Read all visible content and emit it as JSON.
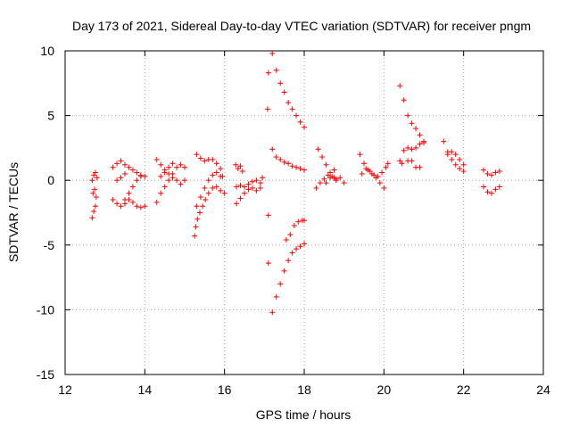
{
  "chart_data": {
    "type": "scatter",
    "title": "Day 173 of 2021, Sidereal Day-to-day VTEC variation (SDTVAR) for receiver pngm",
    "xlabel": "GPS time / hours",
    "ylabel": "SDTVAR / TECUs",
    "xlim": [
      12,
      24
    ],
    "ylim": [
      -15,
      10
    ],
    "xticks": [
      12,
      14,
      16,
      18,
      20,
      22,
      24
    ],
    "yticks": [
      -15,
      -10,
      -5,
      0,
      5,
      10
    ],
    "grid": true,
    "marker": "+",
    "color": "#ff0000",
    "segments": [
      [
        [
          12.68,
          -2.9
        ],
        [
          12.72,
          -2.4
        ],
        [
          12.76,
          -2.0
        ]
      ],
      [
        [
          12.7,
          -1.0
        ],
        [
          12.74,
          -0.7
        ],
        [
          12.78,
          -1.3
        ]
      ],
      [
        [
          12.68,
          0.0
        ],
        [
          12.72,
          0.4
        ],
        [
          12.76,
          0.6
        ],
        [
          12.8,
          0.2
        ]
      ],
      [
        [
          13.2,
          1.0
        ],
        [
          13.3,
          1.3
        ],
        [
          13.4,
          1.5
        ],
        [
          13.5,
          1.2
        ],
        [
          13.6,
          1.0
        ],
        [
          13.7,
          0.8
        ],
        [
          13.8,
          0.6
        ],
        [
          13.9,
          0.4
        ],
        [
          14.0,
          0.3
        ]
      ],
      [
        [
          13.2,
          -1.5
        ],
        [
          13.3,
          -1.8
        ],
        [
          13.4,
          -2.0
        ],
        [
          13.5,
          -1.8
        ],
        [
          13.6,
          -1.5
        ],
        [
          13.7,
          -1.7
        ],
        [
          13.8,
          -2.0
        ],
        [
          13.9,
          -2.1
        ],
        [
          14.0,
          -2.0
        ]
      ],
      [
        [
          13.5,
          -1.5
        ],
        [
          13.6,
          -1.0
        ],
        [
          13.7,
          -0.5
        ],
        [
          13.8,
          0.0
        ],
        [
          13.9,
          0.3
        ]
      ],
      [
        [
          13.3,
          0.0
        ],
        [
          13.4,
          0.2
        ],
        [
          13.5,
          0.5
        ]
      ],
      [
        [
          14.3,
          -1.7
        ],
        [
          14.4,
          -1.0
        ],
        [
          14.5,
          -0.5
        ],
        [
          14.6,
          0.0
        ],
        [
          14.7,
          0.5
        ],
        [
          14.8,
          1.0
        ],
        [
          14.9,
          1.2
        ],
        [
          15.0,
          1.0
        ]
      ],
      [
        [
          14.3,
          1.6
        ],
        [
          14.4,
          1.2
        ],
        [
          14.5,
          0.8
        ],
        [
          14.6,
          0.5
        ],
        [
          14.7,
          0.2
        ],
        [
          14.8,
          0.0
        ],
        [
          14.9,
          -0.3
        ],
        [
          15.0,
          0.0
        ]
      ],
      [
        [
          14.4,
          0.3
        ],
        [
          14.5,
          0.6
        ],
        [
          14.6,
          1.0
        ],
        [
          14.7,
          1.3
        ]
      ],
      [
        [
          15.25,
          -4.3
        ],
        [
          15.28,
          -3.6
        ],
        [
          15.32,
          -3.0
        ],
        [
          15.38,
          -2.5
        ],
        [
          15.45,
          -2.0
        ],
        [
          15.52,
          -1.5
        ],
        [
          15.6,
          -1.0
        ],
        [
          15.7,
          -0.6
        ],
        [
          15.8,
          -0.5
        ],
        [
          15.9,
          -0.8
        ],
        [
          16.0,
          -1.0
        ]
      ],
      [
        [
          15.3,
          -2.0
        ],
        [
          15.4,
          -1.3
        ],
        [
          15.5,
          -0.6
        ],
        [
          15.6,
          0.0
        ],
        [
          15.7,
          0.4
        ],
        [
          15.8,
          0.6
        ],
        [
          15.9,
          0.3
        ]
      ],
      [
        [
          15.3,
          2.0
        ],
        [
          15.4,
          1.7
        ],
        [
          15.5,
          1.5
        ],
        [
          15.6,
          1.6
        ],
        [
          15.7,
          1.6
        ],
        [
          15.8,
          1.3
        ],
        [
          15.9,
          0.9
        ],
        [
          15.95,
          0.3
        ]
      ],
      [
        [
          16.3,
          -1.8
        ],
        [
          16.4,
          -1.4
        ],
        [
          16.5,
          -1.0
        ],
        [
          16.6,
          -0.7
        ],
        [
          16.7,
          -0.6
        ],
        [
          16.8,
          -0.8
        ],
        [
          16.9,
          -0.6
        ]
      ],
      [
        [
          16.3,
          -0.5
        ],
        [
          16.4,
          -0.4
        ],
        [
          16.5,
          -0.5
        ],
        [
          16.6,
          -0.3
        ],
        [
          16.7,
          -0.1
        ],
        [
          16.8,
          0.0
        ],
        [
          16.9,
          -0.2
        ],
        [
          16.95,
          0.2
        ]
      ],
      [
        [
          16.28,
          1.2
        ],
        [
          16.34,
          0.9
        ],
        [
          16.4,
          1.1
        ],
        [
          16.45,
          0.7
        ]
      ],
      [
        [
          17.2,
          9.8
        ],
        [
          17.3,
          8.5
        ],
        [
          17.4,
          7.5
        ],
        [
          17.5,
          6.8
        ],
        [
          17.6,
          6.0
        ],
        [
          17.7,
          5.5
        ],
        [
          17.8,
          5.0
        ],
        [
          17.9,
          4.5
        ],
        [
          18.0,
          4.1
        ]
      ],
      [
        [
          17.1,
          8.3
        ]
      ],
      [
        [
          17.08,
          5.5
        ]
      ],
      [
        [
          17.2,
          2.4
        ],
        [
          17.3,
          1.8
        ],
        [
          17.4,
          1.6
        ],
        [
          17.5,
          1.4
        ],
        [
          17.6,
          1.3
        ],
        [
          17.7,
          1.1
        ],
        [
          17.8,
          1.0
        ],
        [
          17.9,
          0.9
        ],
        [
          18.0,
          0.8
        ]
      ],
      [
        [
          17.1,
          -2.7
        ]
      ],
      [
        [
          17.1,
          -6.4
        ]
      ],
      [
        [
          17.2,
          -10.2
        ],
        [
          17.3,
          -9.0
        ],
        [
          17.4,
          -8.0
        ],
        [
          17.5,
          -7.0
        ],
        [
          17.6,
          -6.2
        ],
        [
          17.7,
          -5.6
        ],
        [
          17.8,
          -5.3
        ],
        [
          17.9,
          -5.1
        ],
        [
          18.0,
          -4.9
        ]
      ],
      [
        [
          17.55,
          -4.6
        ],
        [
          17.65,
          -4.2
        ],
        [
          17.75,
          -3.5
        ],
        [
          17.85,
          -3.2
        ],
        [
          17.95,
          -3.1
        ],
        [
          18.0,
          -3.1
        ]
      ],
      [
        [
          18.3,
          -0.6
        ],
        [
          18.4,
          -0.2
        ],
        [
          18.5,
          0.1
        ],
        [
          18.6,
          0.4
        ],
        [
          18.7,
          0.3
        ],
        [
          18.8,
          0.1
        ],
        [
          18.9,
          0.2
        ],
        [
          19.0,
          -0.2
        ]
      ],
      [
        [
          18.35,
          2.4
        ],
        [
          18.45,
          1.8
        ],
        [
          18.55,
          1.2
        ],
        [
          18.65,
          0.6
        ],
        [
          18.75,
          0.2
        ],
        [
          18.8,
          0.0
        ]
      ],
      [
        [
          18.55,
          -0.2
        ],
        [
          18.65,
          0.2
        ],
        [
          18.75,
          0.8
        ]
      ],
      [
        [
          19.4,
          2.0
        ],
        [
          19.5,
          1.3
        ],
        [
          19.6,
          0.8
        ],
        [
          19.7,
          0.5
        ],
        [
          19.8,
          0.2
        ],
        [
          19.9,
          -0.2
        ],
        [
          20.0,
          -0.6
        ]
      ],
      [
        [
          19.45,
          0.5
        ],
        [
          19.55,
          0.9
        ],
        [
          19.65,
          0.7
        ],
        [
          19.75,
          0.4
        ],
        [
          19.85,
          0.3
        ],
        [
          19.95,
          0.6
        ],
        [
          20.05,
          1.0
        ],
        [
          20.1,
          1.3
        ]
      ],
      [
        [
          20.4,
          7.3
        ],
        [
          20.5,
          6.2
        ],
        [
          20.6,
          5.0
        ],
        [
          20.7,
          4.4
        ],
        [
          20.8,
          4.0
        ],
        [
          20.9,
          3.5
        ],
        [
          21.0,
          3.0
        ]
      ],
      [
        [
          20.4,
          1.5
        ],
        [
          20.5,
          2.3
        ],
        [
          20.6,
          2.5
        ],
        [
          20.7,
          2.4
        ],
        [
          20.8,
          2.5
        ],
        [
          20.9,
          2.8
        ],
        [
          21.0,
          2.9
        ]
      ],
      [
        [
          20.45,
          1.3
        ],
        [
          20.6,
          1.5
        ],
        [
          20.7,
          1.5
        ],
        [
          20.8,
          1.0
        ],
        [
          20.9,
          1.0
        ]
      ],
      [
        [
          21.5,
          3.0
        ],
        [
          21.6,
          2.2
        ],
        [
          21.7,
          1.6
        ],
        [
          21.8,
          1.2
        ],
        [
          21.9,
          0.9
        ],
        [
          22.0,
          0.7
        ]
      ],
      [
        [
          21.6,
          2.0
        ],
        [
          21.7,
          2.2
        ],
        [
          21.8,
          2.0
        ],
        [
          21.9,
          1.6
        ],
        [
          22.0,
          1.2
        ]
      ],
      [
        [
          22.5,
          0.8
        ],
        [
          22.6,
          0.5
        ],
        [
          22.7,
          0.4
        ],
        [
          22.8,
          0.6
        ],
        [
          22.9,
          0.7
        ]
      ],
      [
        [
          22.5,
          -0.5
        ],
        [
          22.6,
          -0.9
        ],
        [
          22.7,
          -1.0
        ],
        [
          22.8,
          -0.7
        ],
        [
          22.9,
          -0.5
        ]
      ]
    ]
  }
}
